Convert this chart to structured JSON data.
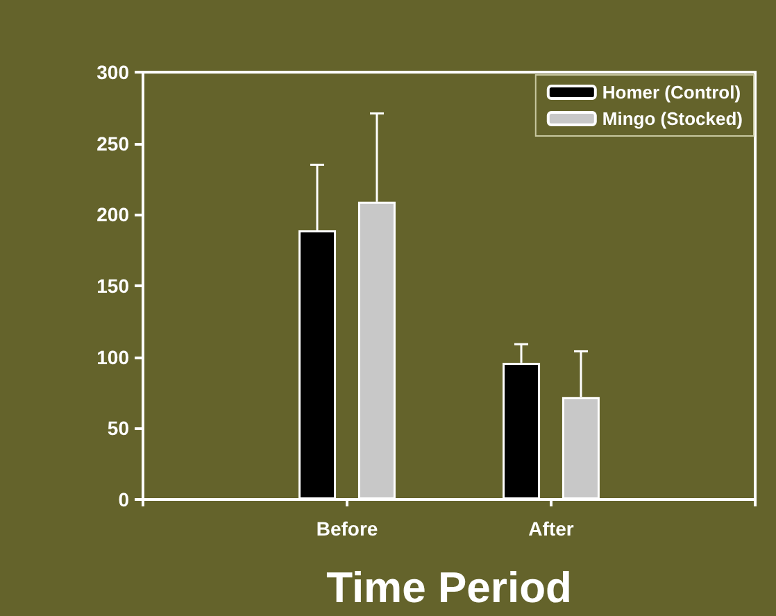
{
  "chart_data": {
    "type": "bar",
    "xlabel": "Time Period",
    "categories": [
      "Before",
      "After"
    ],
    "series": [
      {
        "name": "Homer (Control)",
        "color": "#000000",
        "values": [
          189,
          96
        ],
        "errors": [
          [
            189,
            235
          ],
          [
            96,
            109
          ]
        ]
      },
      {
        "name": "Mingo (Stocked)",
        "color": "#c8c8c8",
        "values": [
          209,
          72
        ],
        "errors": [
          [
            209,
            271
          ],
          [
            72,
            104
          ]
        ]
      }
    ],
    "ylim": [
      0,
      300
    ],
    "yticks": [
      0,
      50,
      100,
      150,
      200,
      250,
      300
    ],
    "grid": false,
    "legend": "top right"
  }
}
